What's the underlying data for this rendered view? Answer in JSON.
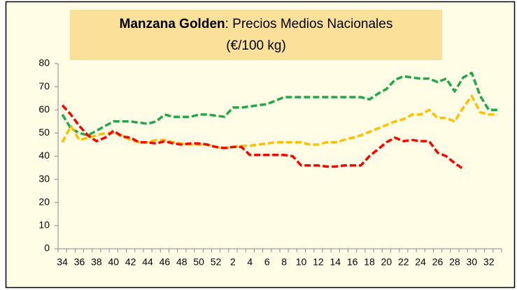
{
  "chart_data": {
    "type": "line",
    "title_bold": "Manzana Golden",
    "title": ": Precios Medios Nacionales",
    "subtitle": "(€/100 kg)",
    "categories": [
      "34",
      null,
      "36",
      null,
      "38",
      null,
      "40",
      null,
      "42",
      null,
      "44",
      null,
      "46",
      null,
      "48",
      null,
      "50",
      null,
      "52",
      null,
      "2",
      null,
      "4",
      null,
      "6",
      null,
      "8",
      null,
      "10",
      null,
      "12",
      null,
      "14",
      null,
      "16",
      null,
      "18",
      null,
      "20",
      null,
      "22",
      null,
      "24",
      null,
      "26",
      null,
      "28",
      null,
      "30",
      null,
      "32",
      null
    ],
    "series": [
      {
        "color": "#22a84a",
        "values": [
          58,
          52,
          50,
          49,
          51,
          53,
          55,
          55,
          55,
          54.5,
          54,
          55,
          58,
          57,
          57,
          57,
          58,
          58,
          57.5,
          57,
          61,
          61,
          61.5,
          62,
          62.5,
          64,
          65.5,
          65.5,
          65.5,
          65.5,
          65.5,
          65.5,
          65.5,
          65.5,
          65.5,
          65.5,
          64.5,
          67,
          69,
          73,
          74.5,
          74,
          73.5,
          73.5,
          72,
          73.5,
          68,
          74,
          76,
          66,
          60,
          60
        ]
      },
      {
        "color": "#ffc000",
        "values": [
          46,
          53,
          47,
          48,
          49,
          50,
          50,
          49,
          47,
          46,
          46,
          47,
          47,
          46,
          45.5,
          45,
          45,
          45,
          44,
          43.5,
          44,
          44.5,
          44.5,
          45,
          45.5,
          46,
          46,
          46,
          46,
          45,
          45,
          46,
          46,
          47,
          48,
          49,
          50.5,
          52,
          53.5,
          55,
          56,
          58,
          58,
          60,
          56.5,
          56.5,
          55,
          61,
          66,
          59,
          58,
          58
        ]
      },
      {
        "color": "#ff0000",
        "values": [
          62,
          58,
          53,
          49,
          46.5,
          48,
          51,
          48.5,
          48,
          46,
          46,
          45.5,
          46.5,
          45.5,
          45,
          45.5,
          45.5,
          45,
          44,
          43.5,
          44,
          44,
          40.5,
          40.5,
          40.5,
          40.5,
          40.5,
          40,
          36,
          36,
          36,
          35.5,
          35.5,
          36,
          36,
          36,
          40,
          43,
          46,
          48,
          46.5,
          47,
          46.5,
          46.5,
          41.5,
          40,
          37,
          34.5,
          null,
          null,
          null,
          null
        ]
      }
    ],
    "ylim": [
      0,
      80
    ],
    "yticks": [
      0,
      10,
      20,
      30,
      40,
      50,
      60,
      70,
      80
    ],
    "grid": false,
    "background": "#fffde6",
    "title_background": "#fbe09a"
  }
}
